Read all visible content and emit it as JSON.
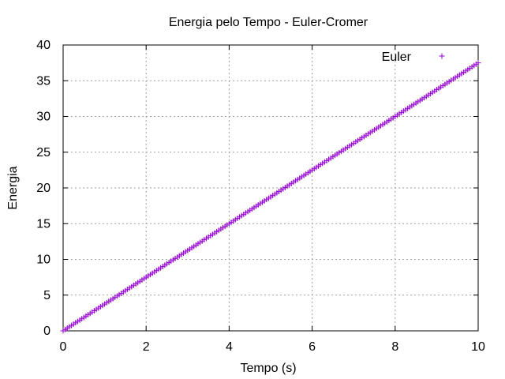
{
  "chart_data": {
    "type": "scatter",
    "title": "Energia pelo Tempo - Euler-Cromer",
    "xlabel": "Tempo (s)",
    "ylabel": "Energia",
    "xlim": [
      0,
      10
    ],
    "ylim": [
      0,
      40
    ],
    "xticks": [
      0,
      2,
      4,
      6,
      8,
      10
    ],
    "yticks": [
      0,
      5,
      10,
      15,
      20,
      25,
      30,
      35,
      40
    ],
    "xtick_labels": [
      "0",
      "2",
      "4",
      "6",
      "8",
      "10"
    ],
    "ytick_labels": [
      "0",
      "5",
      "10",
      "15",
      "20",
      "25",
      "30",
      "35",
      "40"
    ],
    "grid": true,
    "legend": "top-right",
    "marker": "plus",
    "color": "#9400d3",
    "series": [
      {
        "name": "Euler",
        "x": [
          0,
          0.2,
          0.4,
          0.6,
          0.8,
          1,
          1.2,
          1.4,
          1.6,
          1.8,
          2,
          2.2,
          2.4,
          2.6,
          2.8,
          3,
          3.2,
          3.4,
          3.6,
          3.8,
          4,
          4.2,
          4.4,
          4.6,
          4.8,
          5,
          5.2,
          5.4,
          5.6,
          5.8,
          6,
          6.2,
          6.4,
          6.6,
          6.8,
          7,
          7.2,
          7.4,
          7.6,
          7.8,
          8,
          8.2,
          8.4,
          8.6,
          8.8,
          9,
          9.2,
          9.4,
          9.6,
          9.8,
          10
        ],
        "y": [
          0,
          0.75,
          1.5,
          2.25,
          3,
          3.75,
          4.5,
          5.25,
          6,
          6.75,
          7.5,
          8.25,
          9,
          9.75,
          10.5,
          11.25,
          12,
          12.75,
          13.5,
          14.25,
          15,
          15.75,
          16.5,
          17.25,
          18,
          18.75,
          19.5,
          20.25,
          21,
          21.75,
          22.5,
          23.25,
          24,
          24.75,
          25.5,
          26.25,
          27,
          27.75,
          28.5,
          29.25,
          30,
          30.75,
          31.5,
          32.25,
          33,
          33.75,
          34.5,
          35.25,
          36,
          36.75,
          37.5
        ]
      }
    ]
  }
}
